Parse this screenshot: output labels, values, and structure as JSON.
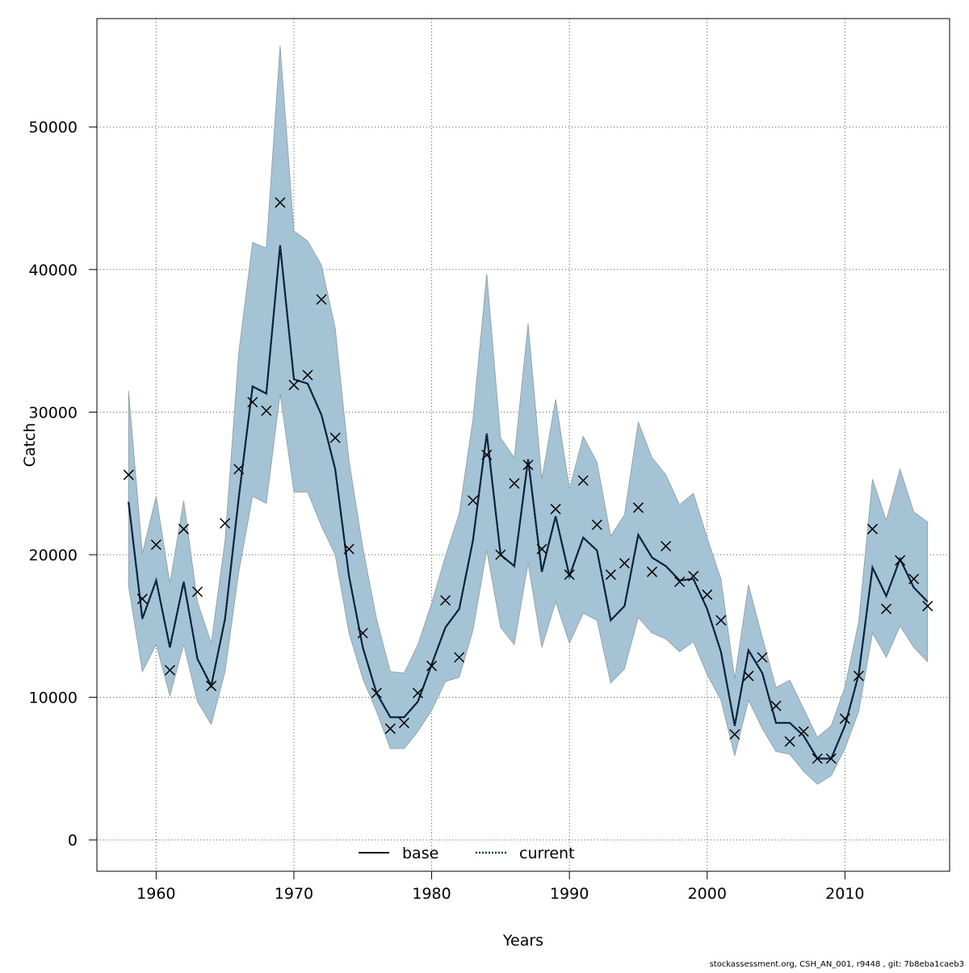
{
  "chart_data": {
    "type": "line",
    "title": "",
    "xlabel": "Years",
    "ylabel": "Catch",
    "xlim": [
      1955.7,
      2017.6
    ],
    "ylim": [
      -2200,
      57600
    ],
    "xticks": [
      1960,
      1970,
      1980,
      1990,
      2000,
      2010
    ],
    "yticks": [
      0,
      10000,
      20000,
      30000,
      40000,
      50000
    ],
    "grid": true,
    "legend": {
      "position": "bottom-center",
      "entries": [
        {
          "label": "base",
          "style": "solid",
          "color": "#000000"
        },
        {
          "label": "current",
          "style": "dotted",
          "color": "#0b3d6b"
        }
      ]
    },
    "colors": {
      "band": "#a4c4d5",
      "band_edge": "#8a9aa4",
      "grid": "#555555",
      "current_line": "#0b3d6b",
      "marker": "#000000"
    },
    "years": [
      1958,
      1959,
      1960,
      1961,
      1962,
      1963,
      1964,
      1965,
      1966,
      1967,
      1968,
      1969,
      1970,
      1971,
      1972,
      1973,
      1974,
      1975,
      1976,
      1977,
      1978,
      1979,
      1980,
      1981,
      1982,
      1983,
      1984,
      1985,
      1986,
      1987,
      1988,
      1989,
      1990,
      1991,
      1992,
      1993,
      1994,
      1995,
      1996,
      1997,
      1998,
      1999,
      2000,
      2001,
      2002,
      2003,
      2004,
      2005,
      2006,
      2007,
      2008,
      2009,
      2010,
      2011,
      2012,
      2013,
      2014,
      2015,
      2016
    ],
    "observed": [
      25600,
      16900,
      20700,
      11900,
      21800,
      17400,
      10800,
      22200,
      26000,
      30700,
      30100,
      44700,
      31900,
      32600,
      37900,
      28200,
      20400,
      14500,
      10300,
      7800,
      8200,
      10300,
      12200,
      16800,
      12800,
      23800,
      27000,
      20000,
      25000,
      26300,
      20400,
      23200,
      18600,
      25200,
      22100,
      18600,
      19400,
      23300,
      18800,
      20600,
      18100,
      18500,
      17200,
      15400,
      7400,
      11500,
      12800,
      9400,
      6900,
      7600,
      5700,
      5700,
      8500,
      11500,
      21800,
      16200,
      19600,
      18300,
      16400
    ],
    "series": [
      {
        "name": "base",
        "style": "solid",
        "values": [
          23700,
          15500,
          18200,
          13500,
          18100,
          12700,
          10800,
          15500,
          24000,
          31800,
          31300,
          41700,
          32300,
          32000,
          29800,
          26000,
          18500,
          13500,
          10300,
          8600,
          8600,
          9700,
          12300,
          14900,
          16200,
          21000,
          28500,
          20000,
          19200,
          26700,
          18800,
          22700,
          18500,
          21200,
          20300,
          15400,
          16400,
          21400,
          19800,
          19200,
          18200,
          18300,
          16200,
          13200,
          8000,
          13300,
          11700,
          8200,
          8200,
          7300,
          5700,
          5700,
          8000,
          11600,
          19100,
          17100,
          19700,
          17700,
          16700
        ]
      },
      {
        "name": "current",
        "style": "dotted",
        "values": [
          23700,
          15500,
          18200,
          13500,
          18100,
          12700,
          10800,
          15500,
          24000,
          31800,
          31300,
          41700,
          32300,
          32000,
          29800,
          26000,
          18500,
          13500,
          10300,
          8600,
          8600,
          9700,
          12300,
          14900,
          16200,
          21000,
          28500,
          20000,
          19200,
          26700,
          18800,
          22700,
          18500,
          21200,
          20300,
          15400,
          16400,
          21400,
          19800,
          19200,
          18200,
          18300,
          16200,
          13200,
          8000,
          13300,
          11700,
          8200,
          8200,
          7300,
          5700,
          5700,
          8000,
          11600,
          19100,
          17100,
          19700,
          17700,
          16700
        ]
      }
    ],
    "band_upper": [
      31500,
      20100,
      24100,
      18000,
      23800,
      16700,
      13800,
      21000,
      34200,
      41900,
      41500,
      55700,
      42700,
      42000,
      40300,
      35900,
      26600,
      20500,
      15500,
      11800,
      11700,
      13700,
      16600,
      19900,
      22900,
      29500,
      39700,
      28200,
      26800,
      36200,
      25300,
      30900,
      24600,
      28300,
      26500,
      21300,
      22800,
      29300,
      26800,
      25600,
      23500,
      24300,
      21200,
      18300,
      11300,
      17900,
      14200,
      10700,
      11200,
      9200,
      7200,
      8000,
      10700,
      15300,
      25300,
      22400,
      26000,
      23000,
      22300
    ],
    "band_lower": [
      17800,
      11800,
      13700,
      10100,
      13700,
      9700,
      8100,
      11800,
      18800,
      24100,
      23600,
      31300,
      24400,
      24400,
      22000,
      20000,
      14500,
      11300,
      9000,
      6400,
      6400,
      7600,
      9100,
      11100,
      11400,
      14700,
      20300,
      14900,
      13700,
      19400,
      13500,
      16700,
      13800,
      15900,
      15400,
      11000,
      12000,
      15600,
      14500,
      14100,
      13200,
      13900,
      11600,
      9800,
      5900,
      9800,
      7800,
      6200,
      6000,
      4800,
      3900,
      4500,
      6400,
      9000,
      14500,
      12800,
      15000,
      13500,
      12500
    ]
  },
  "footer": "stockassessment.org, CSH_AN_001, r9448 , git: 7b8eba1caeb3"
}
